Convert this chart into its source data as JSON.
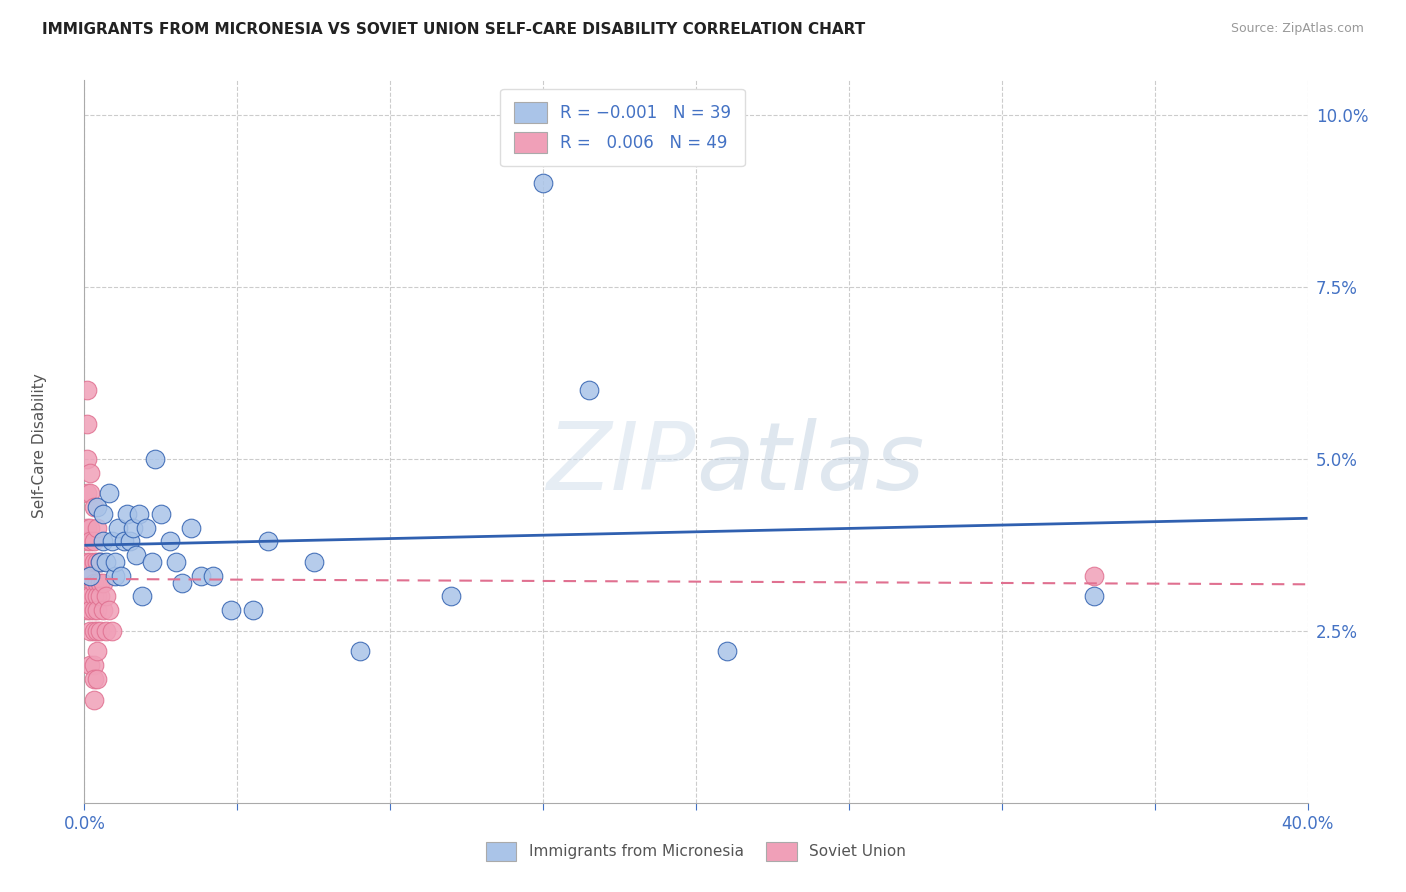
{
  "title": "IMMIGRANTS FROM MICRONESIA VS SOVIET UNION SELF-CARE DISABILITY CORRELATION CHART",
  "source": "Source: ZipAtlas.com",
  "ylabel": "Self-Care Disability",
  "legend_label1": "Immigrants from Micronesia",
  "legend_label2": "Soviet Union",
  "xlim": [
    0.0,
    0.4
  ],
  "ylim": [
    0.0,
    0.105
  ],
  "yticks": [
    0.025,
    0.05,
    0.075,
    0.1
  ],
  "ytick_labels": [
    "2.5%",
    "5.0%",
    "7.5%",
    "10.0%"
  ],
  "xticks": [
    0.0,
    0.05,
    0.1,
    0.15,
    0.2,
    0.25,
    0.3,
    0.35,
    0.4
  ],
  "color_micronesia": "#aac4e8",
  "color_soviet": "#f0a0b8",
  "color_line_micronesia": "#3060b0",
  "color_line_soviet": "#e07090",
  "color_axis_labels": "#4472c4",
  "color_title": "#222222",
  "color_gridline": "#cccccc",
  "background_color": "#ffffff",
  "micronesia_x": [
    0.002,
    0.004,
    0.005,
    0.006,
    0.006,
    0.007,
    0.008,
    0.009,
    0.01,
    0.01,
    0.011,
    0.012,
    0.013,
    0.014,
    0.015,
    0.016,
    0.017,
    0.018,
    0.019,
    0.02,
    0.022,
    0.023,
    0.025,
    0.028,
    0.03,
    0.032,
    0.035,
    0.038,
    0.042,
    0.048,
    0.055,
    0.06,
    0.075,
    0.09,
    0.12,
    0.15,
    0.165,
    0.21,
    0.33
  ],
  "micronesia_y": [
    0.033,
    0.043,
    0.035,
    0.042,
    0.038,
    0.035,
    0.045,
    0.038,
    0.033,
    0.035,
    0.04,
    0.033,
    0.038,
    0.042,
    0.038,
    0.04,
    0.036,
    0.042,
    0.03,
    0.04,
    0.035,
    0.05,
    0.042,
    0.038,
    0.035,
    0.032,
    0.04,
    0.033,
    0.033,
    0.028,
    0.028,
    0.038,
    0.035,
    0.022,
    0.03,
    0.09,
    0.06,
    0.022,
    0.03
  ],
  "soviet_x": [
    0.001,
    0.001,
    0.001,
    0.001,
    0.001,
    0.001,
    0.001,
    0.001,
    0.001,
    0.001,
    0.002,
    0.002,
    0.002,
    0.002,
    0.002,
    0.002,
    0.002,
    0.002,
    0.002,
    0.002,
    0.003,
    0.003,
    0.003,
    0.003,
    0.003,
    0.003,
    0.003,
    0.003,
    0.003,
    0.003,
    0.004,
    0.004,
    0.004,
    0.004,
    0.004,
    0.004,
    0.004,
    0.004,
    0.005,
    0.005,
    0.005,
    0.005,
    0.006,
    0.006,
    0.007,
    0.007,
    0.008,
    0.009,
    0.33
  ],
  "soviet_y": [
    0.06,
    0.055,
    0.05,
    0.045,
    0.04,
    0.038,
    0.035,
    0.033,
    0.03,
    0.028,
    0.048,
    0.045,
    0.04,
    0.038,
    0.035,
    0.033,
    0.03,
    0.028,
    0.025,
    0.02,
    0.043,
    0.038,
    0.035,
    0.032,
    0.03,
    0.028,
    0.025,
    0.02,
    0.018,
    0.015,
    0.04,
    0.035,
    0.032,
    0.03,
    0.028,
    0.025,
    0.022,
    0.018,
    0.035,
    0.032,
    0.03,
    0.025,
    0.032,
    0.028,
    0.03,
    0.025,
    0.028,
    0.025,
    0.033
  ]
}
